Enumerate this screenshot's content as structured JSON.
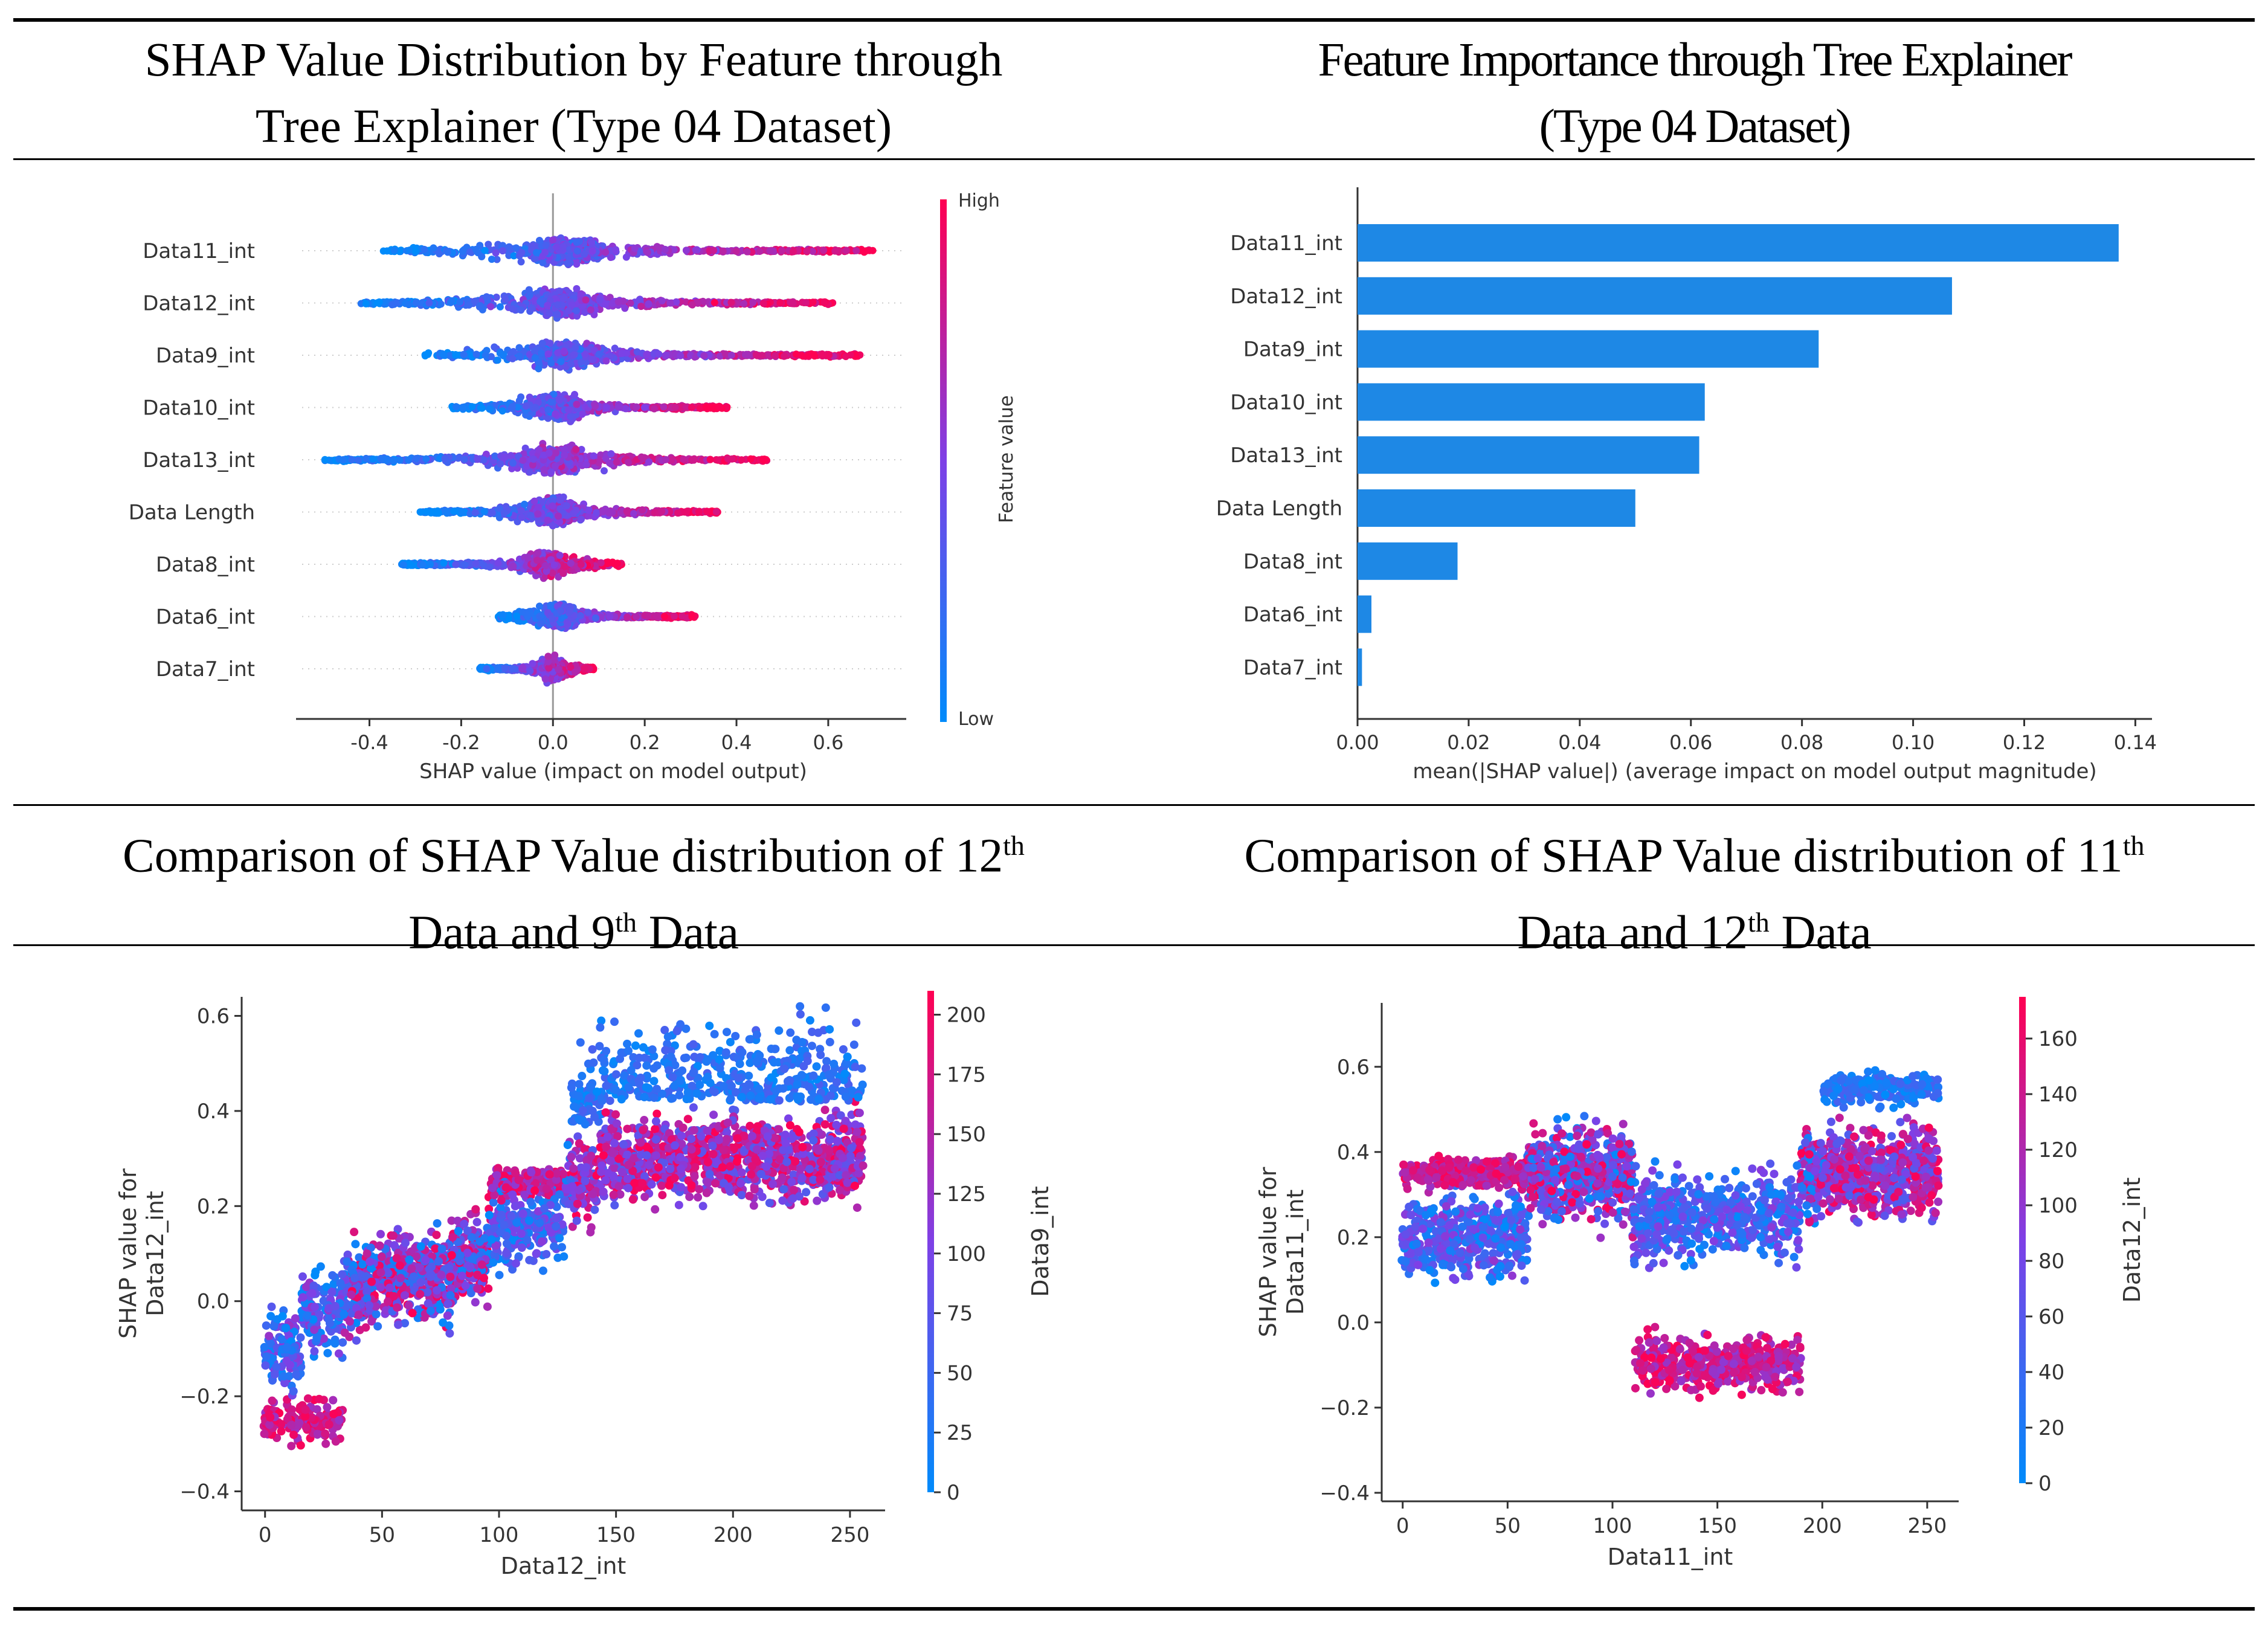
{
  "colors": {
    "low": "#1e88e5",
    "low_bright": "#008bfb",
    "high": "#ff0052",
    "bar": "#1e88e5",
    "axis": "#333333"
  },
  "titles": {
    "top_left_l1": "SHAP Value Distribution by Feature through",
    "top_left_l2": "Tree Explainer (Type 04 Dataset)",
    "top_right_l1": "Feature Importance through Tree Explainer",
    "top_right_l2": "(Type 04 Dataset)",
    "bottom_left_a": "Comparison of SHAP Value distribution of 12",
    "bottom_left_sup": "th",
    "bottom_left_l2a": "Data and 9",
    "bottom_left_sup2": "th",
    "bottom_left_l2b": " Data",
    "bottom_right_a": "Comparison of SHAP Value distribution of 11",
    "bottom_right_sup": "th",
    "bottom_right_l2a": "Data and 12",
    "bottom_right_sup2": "th",
    "bottom_right_l2b": " Data"
  },
  "chart_data": [
    {
      "type": "scatter",
      "subtype": "beeswarm",
      "features": [
        "Data11_int",
        "Data12_int",
        "Data9_int",
        "Data10_int",
        "Data13_int",
        "Data Length",
        "Data8_int",
        "Data6_int",
        "Data7_int"
      ],
      "ranges": [
        [
          -0.37,
          0.7
        ],
        [
          -0.42,
          0.61
        ],
        [
          -0.28,
          0.67
        ],
        [
          -0.22,
          0.38
        ],
        [
          -0.5,
          0.47
        ],
        [
          -0.29,
          0.36
        ],
        [
          -0.33,
          0.15
        ],
        [
          -0.12,
          0.31
        ],
        [
          -0.16,
          0.09
        ]
      ],
      "xlim": [
        -0.56,
        0.77
      ],
      "xticks": [
        "-0.4",
        "-0.2",
        "0.0",
        "0.2",
        "0.4",
        "0.6"
      ],
      "xtick_values": [
        -0.4,
        -0.2,
        0.0,
        0.2,
        0.4,
        0.6
      ],
      "xlabel": "SHAP value (impact on model output)",
      "colorbar": {
        "label": "Feature value",
        "high": "High",
        "low": "Low"
      }
    },
    {
      "type": "bar",
      "orientation": "horizontal",
      "categories": [
        "Data11_int",
        "Data12_int",
        "Data9_int",
        "Data10_int",
        "Data13_int",
        "Data Length",
        "Data8_int",
        "Data6_int",
        "Data7_int"
      ],
      "values": [
        0.137,
        0.107,
        0.083,
        0.0625,
        0.0615,
        0.05,
        0.018,
        0.0025,
        0.0008
      ],
      "xlim": [
        0,
        0.143
      ],
      "xticks": [
        "0.00",
        "0.02",
        "0.04",
        "0.06",
        "0.08",
        "0.10",
        "0.12",
        "0.14"
      ],
      "xtick_values": [
        0,
        0.02,
        0.04,
        0.06,
        0.08,
        0.1,
        0.12,
        0.14
      ],
      "xlabel": "mean(|SHAP value|) (average impact on model output magnitude)"
    },
    {
      "type": "scatter",
      "subtype": "dependence",
      "x_feature": "Data12_int",
      "color_feature": "Data9_int",
      "xlim": [
        -10,
        265
      ],
      "ylim": [
        -0.44,
        0.64
      ],
      "xticks": [
        "0",
        "50",
        "100",
        "150",
        "200",
        "250"
      ],
      "xtick_values": [
        0,
        50,
        100,
        150,
        200,
        250
      ],
      "yticks": [
        "−0.4",
        "−0.2",
        "0.0",
        "0.2",
        "0.4",
        "0.6"
      ],
      "ytick_values": [
        -0.4,
        -0.2,
        0,
        0.2,
        0.4,
        0.6
      ],
      "xlabel": "Data12_int",
      "ylabel_l1": "SHAP value for",
      "ylabel_l2": "Data12_int",
      "colorbar": {
        "label": "Data9_int",
        "range": [
          0,
          210
        ],
        "ticks": [
          "0",
          "25",
          "50",
          "75",
          "100",
          "125",
          "150",
          "175",
          "200"
        ],
        "tick_values": [
          0,
          25,
          50,
          75,
          100,
          125,
          150,
          175,
          200
        ]
      }
    },
    {
      "type": "scatter",
      "subtype": "dependence",
      "x_feature": "Data11_int",
      "color_feature": "Data12_int",
      "xlim": [
        -10,
        265
      ],
      "ylim": [
        -0.42,
        0.75
      ],
      "xticks": [
        "0",
        "50",
        "100",
        "150",
        "200",
        "250"
      ],
      "xtick_values": [
        0,
        50,
        100,
        150,
        200,
        250
      ],
      "yticks": [
        "−0.4",
        "−0.2",
        "0.0",
        "0.2",
        "0.4",
        "0.6"
      ],
      "ytick_values": [
        -0.4,
        -0.2,
        0,
        0.2,
        0.4,
        0.6
      ],
      "xlabel": "Data11_int",
      "ylabel_l1": "SHAP value for",
      "ylabel_l2": "Data11_int",
      "colorbar": {
        "label": "Data12_int",
        "range": [
          0,
          175
        ],
        "ticks": [
          "0",
          "20",
          "40",
          "60",
          "80",
          "100",
          "120",
          "140",
          "160"
        ],
        "tick_values": [
          0,
          20,
          40,
          60,
          80,
          100,
          120,
          140,
          160
        ]
      }
    }
  ]
}
